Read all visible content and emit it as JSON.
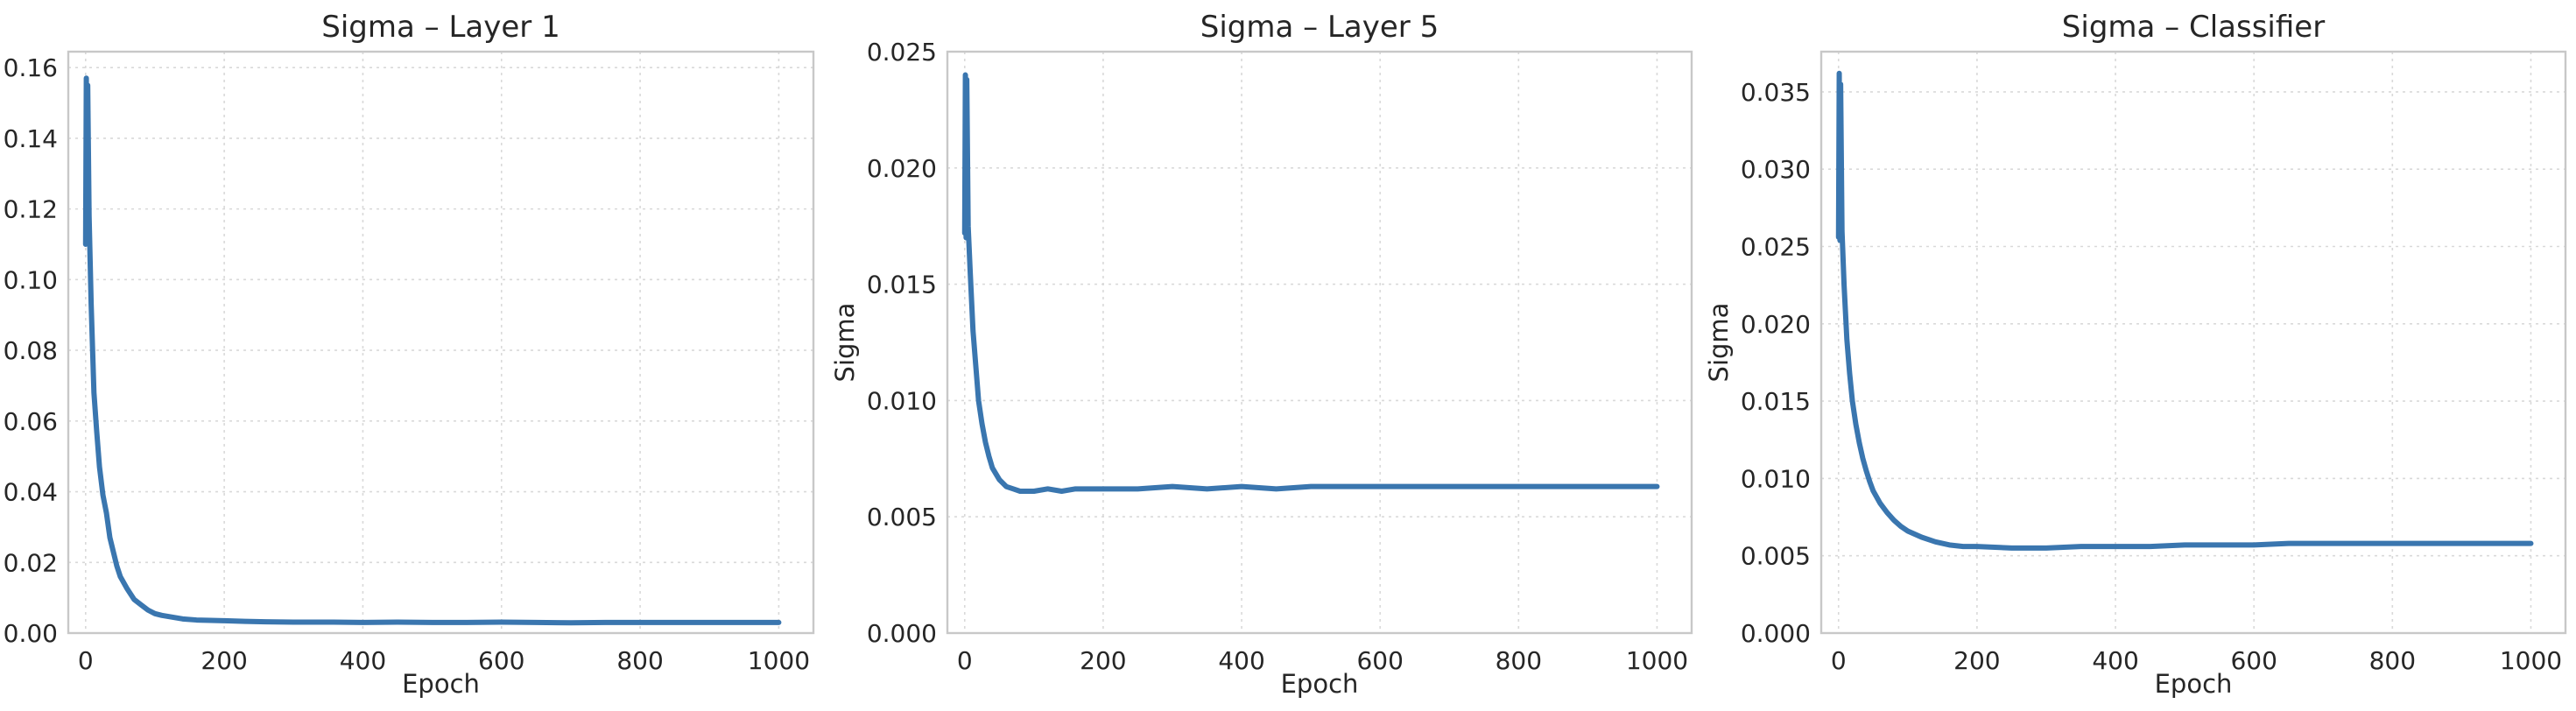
{
  "figure": {
    "line_color": "#3a76af",
    "grid": true
  },
  "chart_data": [
    {
      "type": "line",
      "title": "Sigma – Layer 1",
      "xlabel": "Epoch",
      "ylabel": "",
      "xlim": [
        -25,
        1050
      ],
      "ylim": [
        0,
        0.1645
      ],
      "xticks": [
        "0",
        "200",
        "400",
        "600",
        "800",
        "1000"
      ],
      "yticks": [
        "0.00",
        "0.02",
        "0.04",
        "0.06",
        "0.08",
        "0.10",
        "0.12",
        "0.14",
        "0.16"
      ],
      "series": [
        {
          "x": [
            0,
            1,
            2,
            3,
            5,
            8,
            12,
            16,
            20,
            25,
            30,
            35,
            40,
            45,
            50,
            60,
            70,
            80,
            90,
            100,
            110,
            125,
            140,
            160,
            180,
            200,
            230,
            260,
            300,
            350,
            400,
            450,
            500,
            550,
            600,
            650,
            700,
            750,
            800,
            850,
            900,
            950,
            1000
          ],
          "y": [
            0.11,
            0.157,
            0.112,
            0.155,
            0.118,
            0.093,
            0.068,
            0.057,
            0.047,
            0.039,
            0.034,
            0.027,
            0.023,
            0.019,
            0.016,
            0.0125,
            0.0095,
            0.008,
            0.0065,
            0.0055,
            0.005,
            0.0045,
            0.004,
            0.0037,
            0.0036,
            0.0035,
            0.0033,
            0.0032,
            0.0031,
            0.0031,
            0.003,
            0.0031,
            0.003,
            0.003,
            0.0031,
            0.003,
            0.0029,
            0.003,
            0.003,
            0.003,
            0.003,
            0.003,
            0.003
          ]
        }
      ]
    },
    {
      "type": "line",
      "title": "Sigma – Layer 5",
      "xlabel": "Epoch",
      "ylabel": "Sigma",
      "xlim": [
        -25,
        1050
      ],
      "ylim": [
        0,
        0.025
      ],
      "xticks": [
        "0",
        "200",
        "400",
        "600",
        "800",
        "1000"
      ],
      "yticks": [
        "0.000",
        "0.005",
        "0.010",
        "0.015",
        "0.020",
        "0.025"
      ],
      "series": [
        {
          "x": [
            0,
            1,
            2,
            3,
            5,
            8,
            12,
            16,
            20,
            25,
            30,
            35,
            40,
            50,
            60,
            70,
            80,
            90,
            100,
            120,
            140,
            160,
            180,
            200,
            250,
            300,
            350,
            400,
            450,
            500,
            550,
            600,
            650,
            700,
            750,
            800,
            850,
            900,
            950,
            1000
          ],
          "y": [
            0.0172,
            0.024,
            0.017,
            0.0238,
            0.0175,
            0.0155,
            0.013,
            0.0115,
            0.01,
            0.009,
            0.0082,
            0.0076,
            0.0071,
            0.0066,
            0.0063,
            0.0062,
            0.0061,
            0.0061,
            0.0061,
            0.0062,
            0.0061,
            0.0062,
            0.0062,
            0.0062,
            0.0062,
            0.0063,
            0.0062,
            0.0063,
            0.0062,
            0.0063,
            0.0063,
            0.0063,
            0.0063,
            0.0063,
            0.0063,
            0.0063,
            0.0063,
            0.0063,
            0.0063,
            0.0063
          ]
        }
      ]
    },
    {
      "type": "line",
      "title": "Sigma – Classifier",
      "xlabel": "Epoch",
      "ylabel": "Sigma",
      "xlim": [
        -25,
        1050
      ],
      "ylim": [
        0,
        0.0376
      ],
      "xticks": [
        "0",
        "200",
        "400",
        "600",
        "800",
        "1000"
      ],
      "yticks": [
        "0.000",
        "0.005",
        "0.010",
        "0.015",
        "0.020",
        "0.025",
        "0.030",
        "0.035"
      ],
      "series": [
        {
          "x": [
            0,
            1,
            2,
            3,
            5,
            8,
            12,
            16,
            20,
            25,
            30,
            35,
            40,
            45,
            50,
            60,
            70,
            80,
            90,
            100,
            120,
            140,
            160,
            180,
            200,
            250,
            300,
            350,
            400,
            450,
            500,
            550,
            600,
            650,
            700,
            750,
            800,
            850,
            900,
            950,
            1000
          ],
          "y": [
            0.0256,
            0.0362,
            0.0254,
            0.0355,
            0.026,
            0.0225,
            0.019,
            0.0168,
            0.015,
            0.0135,
            0.0123,
            0.0113,
            0.0105,
            0.0098,
            0.0092,
            0.0084,
            0.0078,
            0.0073,
            0.0069,
            0.0066,
            0.0062,
            0.0059,
            0.0057,
            0.0056,
            0.0056,
            0.0055,
            0.0055,
            0.0056,
            0.0056,
            0.0056,
            0.0057,
            0.0057,
            0.0057,
            0.0058,
            0.0058,
            0.0058,
            0.0058,
            0.0058,
            0.0058,
            0.0058,
            0.0058
          ]
        }
      ]
    }
  ]
}
